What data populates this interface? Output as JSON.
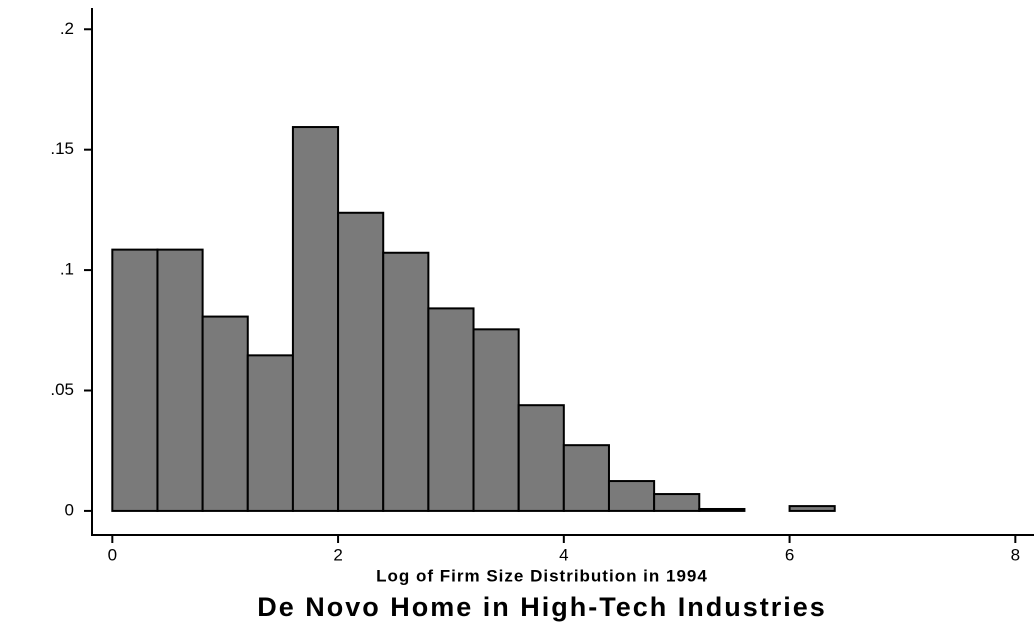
{
  "chart_data": {
    "type": "histogram",
    "title": "De Novo Home in High-Tech Industries",
    "x_label": "Log of Firm Size Distribution in 1994",
    "bins": [
      0,
      0.4,
      0.8,
      1.2,
      1.6,
      2.0,
      2.4,
      2.8,
      3.2,
      3.6,
      4.0,
      4.4,
      4.8,
      5.2,
      5.6,
      6.0,
      6.4
    ],
    "values": [
      0.1085,
      0.1085,
      0.0807,
      0.0646,
      0.1594,
      0.1238,
      0.1072,
      0.0841,
      0.0754,
      0.0439,
      0.0273,
      0.0124,
      0.007,
      0.0008,
      0,
      0.002
    ],
    "color": "#7a7a7a",
    "xlim": [
      -0.18,
      8.13
    ],
    "xticks": [
      0,
      2,
      4,
      6,
      8
    ],
    "ylim": [
      -0.01,
      0.208
    ],
    "yticks": [
      0,
      {
        "value": 0.05,
        "label": ".05"
      },
      {
        "value": 0.1,
        "label": ".1"
      },
      {
        "value": 0.15,
        "label": ".15"
      },
      {
        "value": 0.2,
        "label": ".2"
      }
    ]
  }
}
